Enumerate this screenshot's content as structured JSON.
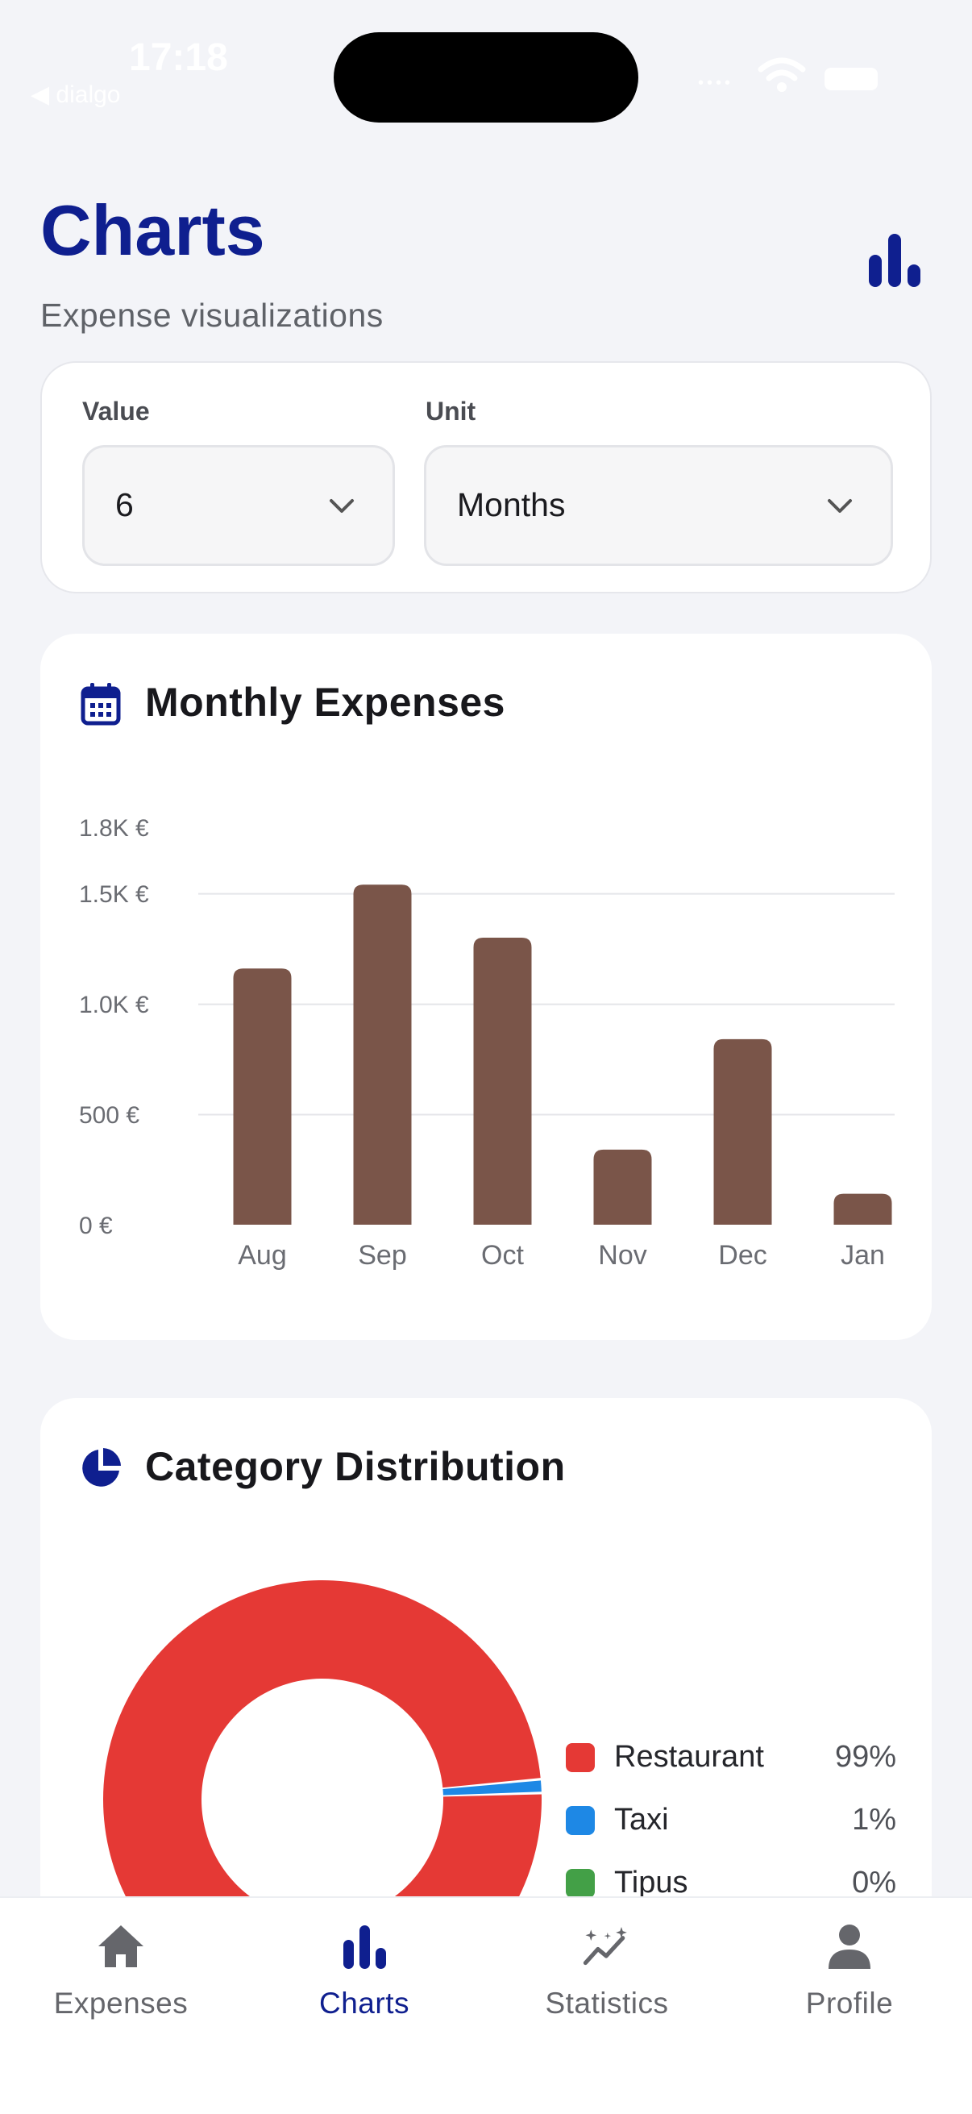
{
  "status_bar": {
    "time": "17:18",
    "back_label": "◀ dialgo"
  },
  "header": {
    "title": "Charts",
    "subtitle": "Expense visualizations",
    "icon": "bar-chart-icon"
  },
  "filter": {
    "value_label": "Value",
    "value": "6",
    "unit_label": "Unit",
    "unit": "Months"
  },
  "monthly_card": {
    "title": "Monthly Expenses",
    "icon": "calendar-icon"
  },
  "category_card": {
    "title": "Category Distribution",
    "icon": "pie-chart-icon"
  },
  "chart_data": [
    {
      "type": "bar",
      "title": "Monthly Expenses",
      "categories": [
        "Aug",
        "Sep",
        "Oct",
        "Nov",
        "Dec",
        "Jan"
      ],
      "values": [
        1160,
        1540,
        1300,
        340,
        840,
        140
      ],
      "y_ticks": [
        "0 €",
        "500 €",
        "1.0K €",
        "1.5K €",
        "1.8K €"
      ],
      "ylim": [
        0,
        1800
      ],
      "grid": true,
      "bar_color": "#7a5549"
    },
    {
      "type": "pie",
      "title": "Category Distribution",
      "donut": true,
      "legend_position": "right",
      "slices": [
        {
          "name": "Restaurant",
          "percent": "99%",
          "value": 99,
          "color": "#e53935"
        },
        {
          "name": "Taxi",
          "percent": "1%",
          "value": 1,
          "color": "#1e88e5"
        },
        {
          "name": "Tipus",
          "percent": "0%",
          "value": 0,
          "color": "#43a047"
        }
      ]
    }
  ],
  "nav": {
    "items": [
      {
        "label": "Expenses",
        "icon": "home-icon"
      },
      {
        "label": "Charts",
        "icon": "bar-chart-icon"
      },
      {
        "label": "Statistics",
        "icon": "trend-sparkle-icon"
      },
      {
        "label": "Profile",
        "icon": "person-icon"
      }
    ],
    "active_color": "#0f1f8f",
    "inactive_color": "#65666b"
  }
}
